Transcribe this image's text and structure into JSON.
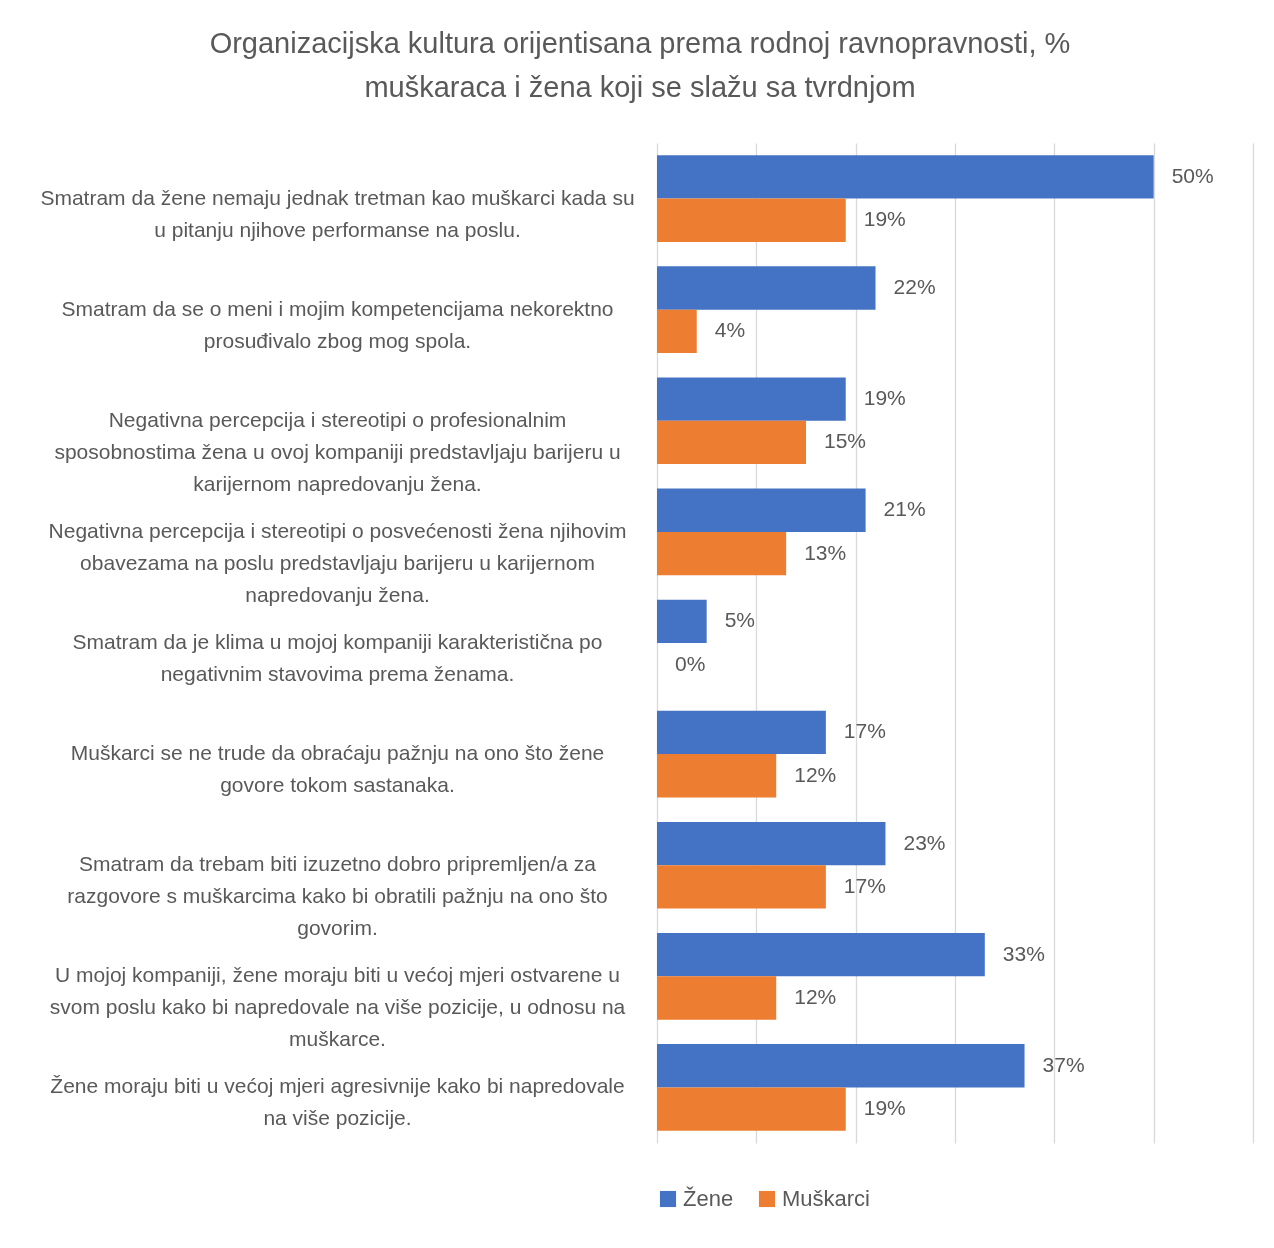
{
  "chart_data": {
    "type": "bar",
    "orientation": "horizontal",
    "title": "Organizacijska kultura orijentisana prema rodnoj ravnopravnosti, % muškaraca i žena koji se slažu sa tvrdnjom",
    "categories": [
      "Smatram da žene nemaju jednak tretman kao muškarci kada su u pitanju njihove performanse na poslu.",
      "Smatram da se o meni i mojim kompetencijama nekorektno prosuđivalo zbog mog spola.",
      "Negativna percepcija i stereotipi o profesionalnim sposobnostima žena u ovoj kompaniji predstavljaju barijeru u karijernom napredovanju žena.",
      "Negativna percepcija i stereotipi o posvećenosti žena njihovim obavezama na poslu predstavljaju barijeru u karijernom napredovanju žena.",
      "Smatram da je klima u mojoj kompaniji karakteristična po negativnim stavovima prema ženama.",
      "Muškarci se ne trude da obraćaju pažnju na ono što žene govore tokom sastanaka.",
      "Smatram da trebam biti izuzetno dobro pripremljen/a za razgovore s muškarcima kako bi obratili pažnju na ono što govorim.",
      "U mojoj kompaniji, žene moraju biti u većoj mjeri ostvarene u svom poslu kako bi napredovale na više pozicije, u odnosu na muškarce.",
      "Žene moraju biti u većoj mjeri agresivnije kako bi napredovale na više pozicije."
    ],
    "series": [
      {
        "name": "Žene",
        "color": "#4472c4",
        "values": [
          50,
          22,
          19,
          21,
          5,
          17,
          23,
          33,
          37
        ],
        "value_labels": [
          "50%",
          "22%",
          "19%",
          "21%",
          "5%",
          "17%",
          "23%",
          "33%",
          "37%"
        ]
      },
      {
        "name": "Muškarci",
        "color": "#ed7d31",
        "values": [
          19,
          4,
          15,
          13,
          0,
          12,
          17,
          12,
          19
        ],
        "value_labels": [
          "19%",
          "4%",
          "15%",
          "13%",
          "0%",
          "12%",
          "17%",
          "12%",
          "19%"
        ]
      }
    ],
    "xlim": [
      0,
      60
    ],
    "xticks": [
      {
        "value": 0,
        "label": null
      },
      {
        "value": 10,
        "label": null
      },
      {
        "value": 20,
        "label": null
      },
      {
        "value": 30,
        "label": null
      },
      {
        "value": 40,
        "label": null
      },
      {
        "value": 50,
        "label": null
      },
      {
        "value": 60,
        "label": null
      }
    ],
    "tick_labels": "y",
    "grid": "x",
    "legend": "bottom"
  }
}
